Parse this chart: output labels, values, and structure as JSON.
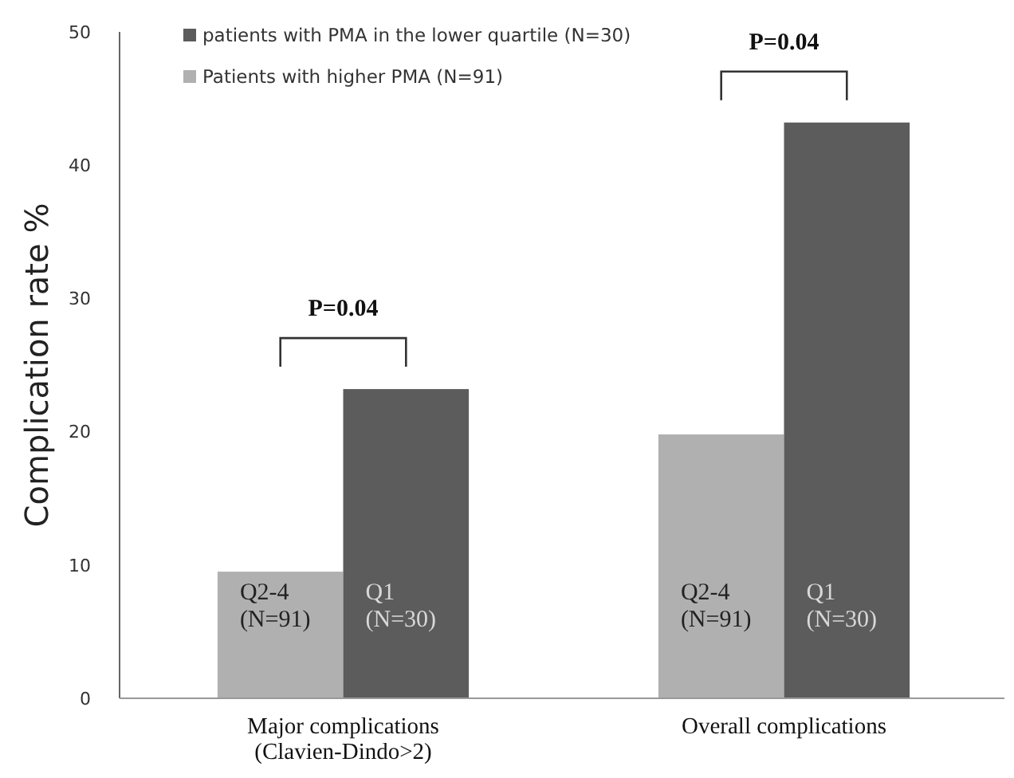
{
  "chart_data": {
    "type": "bar",
    "ylabel": "Complication rate %",
    "categories": [
      "Major complications\n(Clavien-Dindo>2)",
      "Overall complications"
    ],
    "series": [
      {
        "name": "Patients with higher PMA (N=91)",
        "color": "#b0b0b0",
        "values": [
          9.5,
          19.8
        ],
        "value_labels": [
          "Q2-4\n(N=91)",
          "Q2-4\n(N=91)"
        ]
      },
      {
        "name": "patients with PMA in the lower quartile (N=30)",
        "color": "#5c5c5c",
        "values": [
          23.2,
          43.2
        ],
        "value_labels": [
          "Q1\n(N=30)",
          "Q1\n(N=30)"
        ]
      }
    ],
    "ylim": [
      0,
      50
    ],
    "yticks": [
      0,
      10,
      20,
      30,
      40,
      50
    ],
    "grid": false,
    "legend": "top left",
    "annotations": [
      "P=0.04",
      "P=0.04"
    ]
  }
}
